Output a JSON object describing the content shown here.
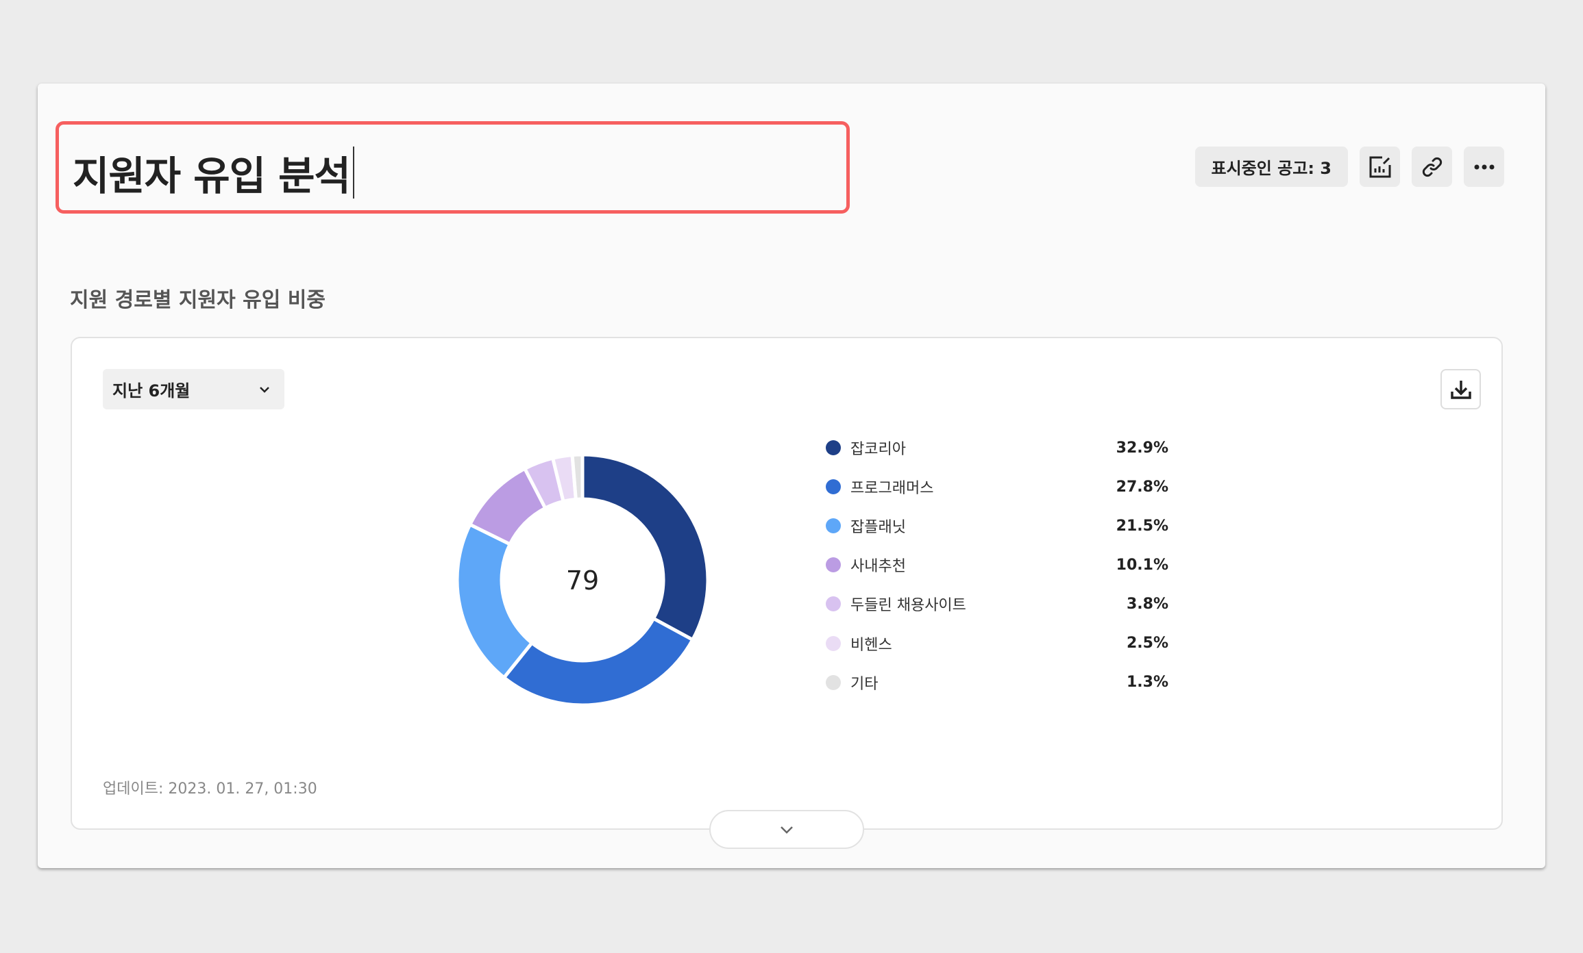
{
  "header": {
    "title": "지원자 유입 분석",
    "posting_badge": "표시중인 공고: 3",
    "icons": [
      "chart-edit-icon",
      "link-icon",
      "more-icon"
    ]
  },
  "section": {
    "subtitle": "지원 경로별 지원자 유입 비중",
    "period_select": "지난 6개월",
    "download_icon": "download-icon",
    "updated": "업데이트: 2023. 01. 27, 01:30",
    "expand_icon": "chevron-down-icon"
  },
  "chart_data": {
    "type": "pie",
    "donut": true,
    "center_label": "79",
    "categories": [
      "잡코리아",
      "프로그래머스",
      "잡플래닛",
      "사내추천",
      "두들린 채용사이트",
      "비헨스",
      "기타"
    ],
    "values": [
      32.9,
      27.8,
      21.5,
      10.1,
      3.8,
      2.5,
      1.3
    ],
    "labels": [
      "32.9%",
      "27.8%",
      "21.5%",
      "10.1%",
      "3.8%",
      "2.5%",
      "1.3%"
    ],
    "colors": [
      "#1e3f87",
      "#306dd3",
      "#5ea7f8",
      "#bb9ce3",
      "#d8c2f0",
      "#eadcf5",
      "#e2e2e2"
    ],
    "legend": "right"
  },
  "colors": {
    "highlight": "#f65f5f"
  }
}
